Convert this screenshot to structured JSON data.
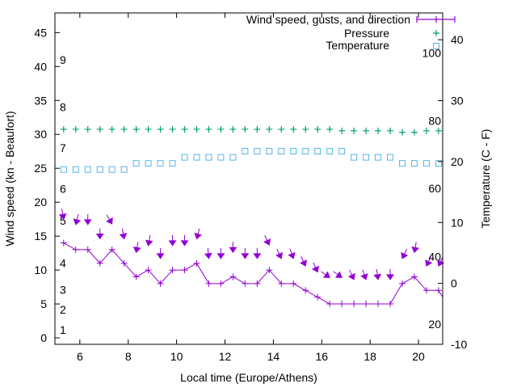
{
  "chart_data": {
    "type": "line",
    "xlabel": "Local time (Europe/Athens)",
    "ylabel": "Wind speed (kn - Beaufort)",
    "y2label": "Temperature (C - F)",
    "xlim": [
      4.97,
      21.0
    ],
    "ylim": [
      -0.95,
      47.9
    ],
    "y2lim": [
      -10,
      44.4
    ],
    "xticks": [
      6,
      8,
      10,
      12,
      14,
      16,
      18,
      20
    ],
    "yticks": [
      0,
      5,
      10,
      15,
      20,
      25,
      30,
      35,
      40,
      45
    ],
    "y2ticks": [
      -10,
      0,
      10,
      20,
      30,
      40
    ],
    "grid": false,
    "legend_position": "top-right",
    "x_start": 5.33,
    "x_step": 0.5,
    "series": [
      {
        "name": "Wind speed, gusts, and direction",
        "color": "#9400d3",
        "axis": "left",
        "speed": [
          14,
          13,
          13,
          11,
          13,
          11,
          9,
          10,
          8,
          10,
          10,
          11,
          8,
          8,
          9,
          8,
          8,
          10,
          8,
          8,
          7,
          6,
          5,
          5,
          5,
          5,
          5,
          5,
          8,
          9,
          7,
          7
        ],
        "gust": [
          17.5,
          16.7,
          16.7,
          14.6,
          16.8,
          14.6,
          12.6,
          13.6,
          11.7,
          13.6,
          13.6,
          14.6,
          11.7,
          11.7,
          12.6,
          11.7,
          11.7,
          13.7,
          11.7,
          11.7,
          10.6,
          9.7,
          8.9,
          8.9,
          8.6,
          8.6,
          8.6,
          8.6,
          11.7,
          12.6,
          10.6,
          10.6
        ],
        "direction_deg": [
          350,
          15,
          0,
          0,
          330,
          350,
          10,
          10,
          0,
          0,
          0,
          15,
          355,
          0,
          0,
          0,
          0,
          335,
          335,
          340,
          335,
          335,
          305,
          305,
          335,
          340,
          352,
          0,
          25,
          10,
          25,
          25
        ]
      },
      {
        "name": "Pressure",
        "color": "#009e73",
        "axis": "right",
        "values": [
          25.3,
          25.3,
          25.3,
          25.3,
          25.3,
          25.3,
          25.3,
          25.3,
          25.3,
          25.3,
          25.3,
          25.3,
          25.3,
          25.3,
          25.3,
          25.3,
          25.3,
          25.3,
          25.3,
          25.3,
          25.3,
          25.3,
          25.3,
          25.05,
          25.05,
          25.05,
          25.05,
          25.05,
          24.8,
          24.8,
          25.05,
          25.05
        ]
      },
      {
        "name": "Temperature",
        "color": "#56b4e9",
        "axis": "right",
        "values": [
          18.7,
          18.7,
          18.7,
          18.7,
          18.7,
          18.7,
          19.7,
          19.7,
          19.7,
          19.7,
          20.7,
          20.7,
          20.7,
          20.7,
          20.7,
          21.7,
          21.7,
          21.7,
          21.7,
          21.7,
          21.7,
          21.7,
          21.7,
          21.7,
          20.7,
          20.7,
          20.7,
          20.7,
          19.7,
          19.7,
          19.7,
          19.7
        ]
      }
    ],
    "beaufort_labels": [
      {
        "text": "1",
        "kn": 1.2
      },
      {
        "text": "2",
        "kn": 4.2
      },
      {
        "text": "3",
        "kn": 7.1
      },
      {
        "text": "4",
        "kn": 11
      },
      {
        "text": "5",
        "kn": 17.3
      },
      {
        "text": "6",
        "kn": 22
      },
      {
        "text": "7",
        "kn": 28
      },
      {
        "text": "8",
        "kn": 34
      },
      {
        "text": "9",
        "kn": 41
      }
    ],
    "fahrenheit_labels": [
      {
        "text": "20",
        "c": -6.7
      },
      {
        "text": "40",
        "c": 4.4
      },
      {
        "text": "60",
        "c": 15.6
      },
      {
        "text": "80",
        "c": 26.7
      },
      {
        "text": "100",
        "c": 37.8
      }
    ]
  }
}
